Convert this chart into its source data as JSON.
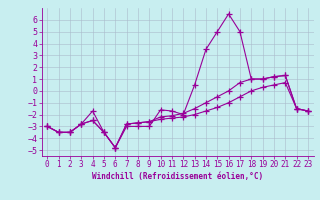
{
  "xlabel": "Windchill (Refroidissement éolien,°C)",
  "ylabel": "",
  "background_color": "#c8eef0",
  "line_color": "#990099",
  "grid_color": "#aabbcc",
  "xlim": [
    -0.5,
    23.5
  ],
  "ylim": [
    -5.5,
    7.0
  ],
  "yticks": [
    -5,
    -4,
    -3,
    -2,
    -1,
    0,
    1,
    2,
    3,
    4,
    5,
    6
  ],
  "xticks": [
    0,
    1,
    2,
    3,
    4,
    5,
    6,
    7,
    8,
    9,
    10,
    11,
    12,
    13,
    14,
    15,
    16,
    17,
    18,
    19,
    20,
    21,
    22,
    23
  ],
  "series1_x": [
    0,
    1,
    2,
    3,
    4,
    5,
    6,
    7,
    8,
    9,
    10,
    11,
    12,
    13,
    14,
    15,
    16,
    17,
    18,
    19,
    20,
    21,
    22,
    23
  ],
  "series1_y": [
    -3.0,
    -3.5,
    -3.5,
    -2.8,
    -1.7,
    -3.5,
    -4.8,
    -3.0,
    -3.0,
    -3.0,
    -1.6,
    -1.7,
    -2.0,
    0.5,
    3.5,
    5.0,
    6.5,
    5.0,
    1.0,
    1.0,
    1.2,
    1.3,
    -1.5,
    -1.7
  ],
  "series2_x": [
    0,
    1,
    2,
    3,
    4,
    5,
    6,
    7,
    8,
    9,
    10,
    11,
    12,
    13,
    14,
    15,
    16,
    17,
    18,
    19,
    20,
    21,
    22,
    23
  ],
  "series2_y": [
    -3.0,
    -3.5,
    -3.5,
    -2.8,
    -2.5,
    -3.5,
    -4.8,
    -2.8,
    -2.7,
    -2.6,
    -2.4,
    -2.3,
    -2.2,
    -2.0,
    -1.7,
    -1.4,
    -1.0,
    -0.5,
    0.0,
    0.3,
    0.5,
    0.7,
    -1.5,
    -1.7
  ],
  "series3_x": [
    0,
    1,
    2,
    3,
    4,
    5,
    6,
    7,
    8,
    9,
    10,
    11,
    12,
    13,
    14,
    15,
    16,
    17,
    18,
    19,
    20,
    21,
    22,
    23
  ],
  "series3_y": [
    -3.0,
    -3.5,
    -3.5,
    -2.8,
    -2.5,
    -3.5,
    -4.8,
    -2.8,
    -2.7,
    -2.6,
    -2.2,
    -2.1,
    -1.9,
    -1.5,
    -1.0,
    -0.5,
    0.0,
    0.7,
    1.0,
    1.0,
    1.2,
    1.3,
    -1.5,
    -1.7
  ],
  "tick_fontsize": 5.5,
  "xlabel_fontsize": 5.5
}
